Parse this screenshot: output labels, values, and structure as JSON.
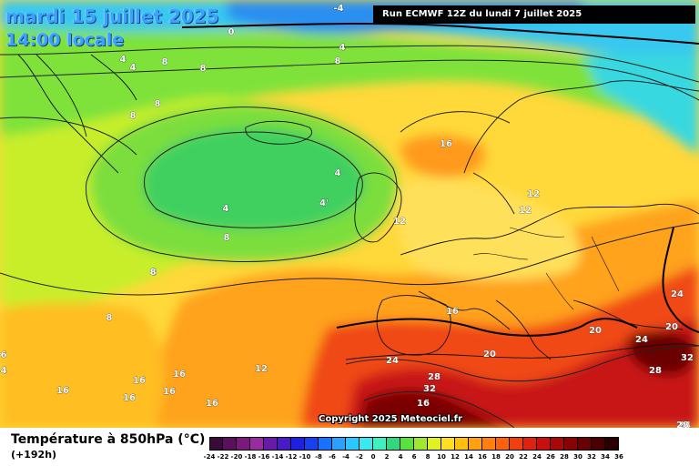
{
  "header": {
    "date_line": "mardi 15 juillet 2025",
    "time_line": "14:00 locale",
    "run_info": "Run ECMWF 12Z du lundi 7 juillet 2025",
    "copyright": "Copyright 2025 Meteociel.fr"
  },
  "legend": {
    "title": "Température à 850hPa (°C)",
    "lead_time": "(+192h)",
    "ticks": [
      "-24",
      "-22",
      "-20",
      "-18",
      "-16",
      "-14",
      "-12",
      "-10",
      "-8",
      "-6",
      "-4",
      "-2",
      "0",
      "2",
      "4",
      "6",
      "8",
      "10",
      "12",
      "14",
      "16",
      "18",
      "20",
      "22",
      "24",
      "26",
      "28",
      "30",
      "32",
      "34",
      "36"
    ],
    "colors": [
      "#3a0b3a",
      "#5c0f5c",
      "#7c1a7c",
      "#9a2aa0",
      "#6a1aa8",
      "#4a1ac8",
      "#2020e0",
      "#1840f0",
      "#1a70ff",
      "#2aa0ff",
      "#2ac8ff",
      "#3ae8f0",
      "#40f0c0",
      "#30d880",
      "#5ae040",
      "#a0e830",
      "#e0f020",
      "#ffe020",
      "#ffc010",
      "#ffa010",
      "#ff8010",
      "#ff6010",
      "#f04010",
      "#e02010",
      "#c81010",
      "#a80808",
      "#880404",
      "#680202",
      "#4a0000",
      "#2a0000"
    ]
  },
  "map_labels": [
    {
      "text": "-4"
    },
    {
      "text": "0"
    },
    {
      "text": "4"
    },
    {
      "text": "4"
    },
    {
      "text": "4"
    },
    {
      "text": "8"
    },
    {
      "text": "8"
    },
    {
      "text": "8"
    },
    {
      "text": "8"
    },
    {
      "text": "8"
    },
    {
      "text": "16"
    },
    {
      "text": "4"
    },
    {
      "text": "4"
    },
    {
      "text": "4'"
    },
    {
      "text": "8"
    },
    {
      "text": "8"
    },
    {
      "text": "12"
    },
    {
      "text": "12"
    },
    {
      "text": "12"
    },
    {
      "text": "8"
    },
    {
      "text": "16"
    },
    {
      "text": "24"
    },
    {
      "text": "20"
    },
    {
      "text": "20"
    },
    {
      "text": "24"
    },
    {
      "text": "28"
    },
    {
      "text": "32"
    },
    {
      "text": "20"
    },
    {
      "text": "24"
    },
    {
      "text": "28"
    },
    {
      "text": "32"
    },
    {
      "text": "16"
    },
    {
      "text": "16"
    },
    {
      "text": "16"
    },
    {
      "text": "16"
    },
    {
      "text": "16"
    },
    {
      "text": "16"
    },
    {
      "text": "16"
    },
    {
      "text": "12"
    },
    {
      "text": "24"
    },
    {
      "text": "28"
    },
    {
      "text": "6"
    },
    {
      "text": "4"
    },
    {
      "text": "8"
    }
  ]
}
